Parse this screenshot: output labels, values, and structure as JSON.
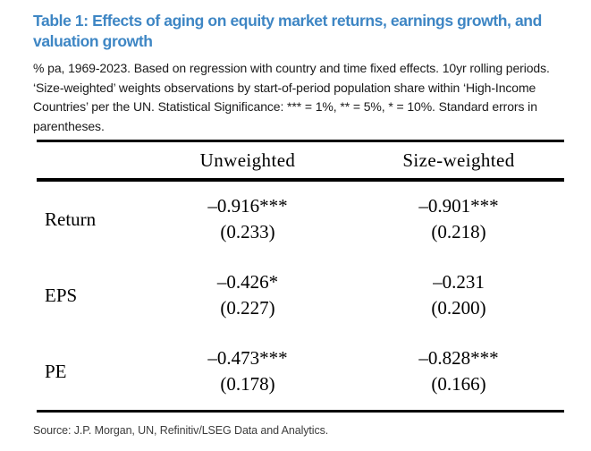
{
  "title": "Table 1: Effects of aging on equity market returns, earnings growth, and valuation growth",
  "notes": "% pa, 1969-2023. Based on regression with country and time fixed effects. 10yr rolling periods. ‘Size-weighted’ weights observations by start-of-period population share within ‘High-Income Countries’ per the UN. Statistical Significance: *** = 1%, ** = 5%, * = 10%. Standard errors in parentheses.",
  "table": {
    "columns": [
      "",
      "Unweighted",
      "Size-weighted"
    ],
    "rows": [
      {
        "label": "Return",
        "unweighted": {
          "value": "–0.916***",
          "se": "(0.233)"
        },
        "size_weighted": {
          "value": "–0.901***",
          "se": "(0.218)"
        }
      },
      {
        "label": "EPS",
        "unweighted": {
          "value": "–0.426*",
          "se": "(0.227)"
        },
        "size_weighted": {
          "value": "–0.231",
          "se": "(0.200)"
        }
      },
      {
        "label": "PE",
        "unweighted": {
          "value": "–0.473***",
          "se": "(0.178)"
        },
        "size_weighted": {
          "value": "–0.828***",
          "se": "(0.166)"
        }
      }
    ]
  },
  "source": "Source: J.P. Morgan, UN, Refinitiv/LSEG Data and Analytics.",
  "colors": {
    "title_blue": "#3e86c4",
    "rule_black": "#000000",
    "source_gray": "#3c3c3c"
  }
}
